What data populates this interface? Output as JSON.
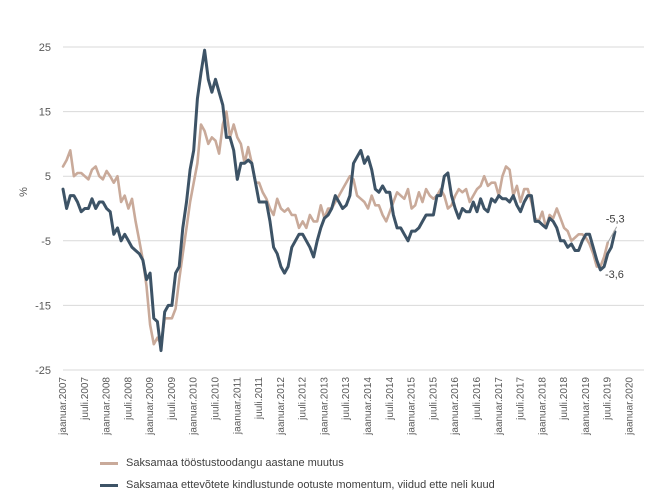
{
  "chart_data": {
    "type": "line",
    "title": "",
    "xlabel": "",
    "ylabel": "%",
    "ylim": [
      -25,
      25
    ],
    "yticks": [
      "25",
      "15",
      "5",
      "-5",
      "-15",
      "-25"
    ],
    "x_tick_labels": [
      "jaanuar.2007",
      "juuli.2007",
      "jaanuar.2008",
      "juuli.2008",
      "jaanuar.2009",
      "juuli.2009",
      "jaanuar.2010",
      "juuli.2010",
      "jaanuar.2011",
      "juuli.2011",
      "jaanuar.2012",
      "juuli.2012",
      "jaanuar.2013",
      "juuli.2013",
      "jaanuar.2014",
      "juuli.2014",
      "jaanuar.2015",
      "juuli.2015",
      "jaanuar.2016",
      "juuli.2016",
      "jaanuar.2017",
      "juuli.2017",
      "jaanuar.2018",
      "juuli.2018",
      "jaanuar.2019",
      "juuli.2019",
      "jaanuar.2020"
    ],
    "grid": "horizontal",
    "legend_position": "bottom",
    "series": [
      {
        "name": "Saksamaa tööstustoodangu aastane muutus",
        "color": "#c9aa9a",
        "points": [
          [
            0,
            6.5
          ],
          [
            1,
            7.5
          ],
          [
            2,
            9
          ],
          [
            3,
            5
          ],
          [
            4,
            5.5
          ],
          [
            5,
            5.5
          ],
          [
            6,
            5
          ],
          [
            7,
            4.5
          ],
          [
            8,
            6
          ],
          [
            9,
            6.5
          ],
          [
            10,
            5
          ],
          [
            11,
            4.5
          ],
          [
            12,
            5.8
          ],
          [
            13,
            5
          ],
          [
            14,
            4
          ],
          [
            15,
            5
          ],
          [
            16,
            1
          ],
          [
            17,
            2
          ],
          [
            18,
            0
          ],
          [
            19,
            1.5
          ],
          [
            20,
            -2
          ],
          [
            21,
            -5
          ],
          [
            22,
            -8
          ],
          [
            23,
            -12
          ],
          [
            24,
            -18
          ],
          [
            25,
            -21
          ],
          [
            26,
            -20
          ],
          [
            27,
            -21
          ],
          [
            28,
            -17
          ],
          [
            29,
            -17
          ],
          [
            30,
            -17
          ],
          [
            31,
            -15.5
          ],
          [
            32,
            -11
          ],
          [
            33,
            -7
          ],
          [
            34,
            -3
          ],
          [
            35,
            1
          ],
          [
            36,
            4
          ],
          [
            37,
            7
          ],
          [
            38,
            13
          ],
          [
            39,
            12
          ],
          [
            40,
            10
          ],
          [
            41,
            11
          ],
          [
            42,
            10.5
          ],
          [
            43,
            8.5
          ],
          [
            44,
            13
          ],
          [
            45,
            15
          ],
          [
            46,
            11
          ],
          [
            47,
            13
          ],
          [
            48,
            11
          ],
          [
            49,
            10
          ],
          [
            50,
            7
          ],
          [
            51,
            9.5
          ],
          [
            52,
            7
          ],
          [
            53,
            4
          ],
          [
            54,
            4
          ],
          [
            55,
            2.5
          ],
          [
            56,
            1.5
          ],
          [
            57,
            0
          ],
          [
            58,
            -1
          ],
          [
            59,
            1.5
          ],
          [
            60,
            0
          ],
          [
            61,
            -0.5
          ],
          [
            62,
            0
          ],
          [
            63,
            -1
          ],
          [
            64,
            -1
          ],
          [
            65,
            -3
          ],
          [
            66,
            -2
          ],
          [
            67,
            -3
          ],
          [
            68,
            -1
          ],
          [
            69,
            -2
          ],
          [
            70,
            -2
          ],
          [
            71,
            0.5
          ],
          [
            72,
            -1.5
          ],
          [
            73,
            0
          ],
          [
            74,
            0
          ],
          [
            75,
            1
          ],
          [
            76,
            2
          ],
          [
            77,
            3
          ],
          [
            78,
            4
          ],
          [
            79,
            5
          ],
          [
            80,
            4.5
          ],
          [
            81,
            2
          ],
          [
            82,
            1.5
          ],
          [
            83,
            1
          ],
          [
            84,
            0
          ],
          [
            85,
            2
          ],
          [
            86,
            0.5
          ],
          [
            87,
            0.5
          ],
          [
            88,
            -1
          ],
          [
            89,
            -2
          ],
          [
            90,
            -0.5
          ],
          [
            91,
            1
          ],
          [
            92,
            2.5
          ],
          [
            93,
            2
          ],
          [
            94,
            1.5
          ],
          [
            95,
            3
          ],
          [
            96,
            0
          ],
          [
            97,
            0.5
          ],
          [
            98,
            2.5
          ],
          [
            99,
            1
          ],
          [
            100,
            3
          ],
          [
            101,
            2
          ],
          [
            102,
            1.5
          ],
          [
            103,
            2
          ],
          [
            104,
            3
          ],
          [
            105,
            2
          ],
          [
            106,
            0
          ],
          [
            107,
            0.5
          ],
          [
            108,
            2
          ],
          [
            109,
            3
          ],
          [
            110,
            2.5
          ],
          [
            111,
            3
          ],
          [
            112,
            1
          ],
          [
            113,
            2
          ],
          [
            114,
            3
          ],
          [
            115,
            3.5
          ],
          [
            116,
            5
          ],
          [
            117,
            3.5
          ],
          [
            118,
            4
          ],
          [
            119,
            4
          ],
          [
            120,
            2
          ],
          [
            121,
            5
          ],
          [
            122,
            6.5
          ],
          [
            123,
            6
          ],
          [
            124,
            2
          ],
          [
            125,
            3.5
          ],
          [
            126,
            1
          ],
          [
            127,
            3
          ],
          [
            128,
            3
          ],
          [
            129,
            1
          ],
          [
            130,
            -1.5
          ],
          [
            131,
            -2
          ],
          [
            132,
            -0.5
          ],
          [
            133,
            -3
          ],
          [
            134,
            -1
          ],
          [
            135,
            -1.5
          ],
          [
            136,
            0
          ],
          [
            137,
            -1.5
          ],
          [
            138,
            -3
          ],
          [
            139,
            -3.5
          ],
          [
            140,
            -5
          ],
          [
            141,
            -4.5
          ],
          [
            142,
            -4
          ],
          [
            143,
            -4
          ],
          [
            144,
            -4.5
          ],
          [
            145,
            -5.5
          ],
          [
            146,
            -7
          ],
          [
            147,
            -9
          ],
          [
            148,
            -9
          ],
          [
            149,
            -7.5
          ],
          [
            150,
            -5.3
          ]
        ],
        "end_label": "-5,3"
      },
      {
        "name": "Saksamaa ettevõtete kindlustunde ootuste momentum, viidud ette neli kuud",
        "color": "#3d5366",
        "points": [
          [
            0,
            3
          ],
          [
            1,
            0
          ],
          [
            2,
            2
          ],
          [
            3,
            2
          ],
          [
            4,
            1
          ],
          [
            5,
            -0.5
          ],
          [
            6,
            0
          ],
          [
            7,
            0
          ],
          [
            8,
            1.5
          ],
          [
            9,
            0
          ],
          [
            10,
            1
          ],
          [
            11,
            1
          ],
          [
            12,
            0
          ],
          [
            13,
            -0.5
          ],
          [
            14,
            -4
          ],
          [
            15,
            -3
          ],
          [
            16,
            -5
          ],
          [
            17,
            -4
          ],
          [
            18,
            -5
          ],
          [
            19,
            -6
          ],
          [
            20,
            -6.5
          ],
          [
            21,
            -7
          ],
          [
            22,
            -8
          ],
          [
            23,
            -11
          ],
          [
            24,
            -10
          ],
          [
            25,
            -17
          ],
          [
            26,
            -17.5
          ],
          [
            27,
            -22
          ],
          [
            28,
            -16
          ],
          [
            29,
            -15
          ],
          [
            30,
            -15
          ],
          [
            31,
            -10
          ],
          [
            32,
            -9
          ],
          [
            33,
            -3
          ],
          [
            34,
            1
          ],
          [
            35,
            6
          ],
          [
            36,
            9
          ],
          [
            37,
            17
          ],
          [
            38,
            21
          ],
          [
            39,
            24.5
          ],
          [
            40,
            20
          ],
          [
            41,
            18
          ],
          [
            42,
            20
          ],
          [
            43,
            18
          ],
          [
            44,
            16
          ],
          [
            45,
            11
          ],
          [
            46,
            11
          ],
          [
            47,
            9
          ],
          [
            48,
            4.5
          ],
          [
            49,
            7
          ],
          [
            50,
            7
          ],
          [
            51,
            7.5
          ],
          [
            52,
            7
          ],
          [
            53,
            4
          ],
          [
            54,
            1
          ],
          [
            55,
            1
          ],
          [
            56,
            1
          ],
          [
            57,
            -2
          ],
          [
            58,
            -6
          ],
          [
            59,
            -7
          ],
          [
            60,
            -9
          ],
          [
            61,
            -10
          ],
          [
            62,
            -9
          ],
          [
            63,
            -6
          ],
          [
            64,
            -5
          ],
          [
            65,
            -4
          ],
          [
            66,
            -4
          ],
          [
            67,
            -5
          ],
          [
            68,
            -6
          ],
          [
            69,
            -7.5
          ],
          [
            70,
            -5
          ],
          [
            71,
            -3
          ],
          [
            72,
            -1.5
          ],
          [
            73,
            -1
          ],
          [
            74,
            0
          ],
          [
            75,
            2
          ],
          [
            76,
            1
          ],
          [
            77,
            0
          ],
          [
            78,
            0.5
          ],
          [
            79,
            2
          ],
          [
            80,
            7
          ],
          [
            81,
            8
          ],
          [
            82,
            9
          ],
          [
            83,
            7
          ],
          [
            84,
            8
          ],
          [
            85,
            6
          ],
          [
            86,
            3
          ],
          [
            87,
            2.5
          ],
          [
            88,
            3.5
          ],
          [
            89,
            2.5
          ],
          [
            90,
            2.5
          ],
          [
            91,
            -1
          ],
          [
            92,
            -3
          ],
          [
            93,
            -3
          ],
          [
            94,
            -4
          ],
          [
            95,
            -5
          ],
          [
            96,
            -3.5
          ],
          [
            97,
            -3.5
          ],
          [
            98,
            -3
          ],
          [
            99,
            -2
          ],
          [
            100,
            -1
          ],
          [
            101,
            -1
          ],
          [
            102,
            -1
          ],
          [
            103,
            2
          ],
          [
            104,
            2
          ],
          [
            105,
            5
          ],
          [
            106,
            5.5
          ],
          [
            107,
            2
          ],
          [
            108,
            0
          ],
          [
            109,
            -1.5
          ],
          [
            110,
            0
          ],
          [
            111,
            -0.5
          ],
          [
            112,
            -0.5
          ],
          [
            113,
            1
          ],
          [
            114,
            -0.5
          ],
          [
            115,
            1.5
          ],
          [
            116,
            0
          ],
          [
            117,
            -0.5
          ],
          [
            118,
            1.5
          ],
          [
            119,
            1
          ],
          [
            120,
            2
          ],
          [
            121,
            1.5
          ],
          [
            122,
            1.5
          ],
          [
            123,
            1
          ],
          [
            124,
            2
          ],
          [
            125,
            0.5
          ],
          [
            126,
            -0.5
          ],
          [
            127,
            1
          ],
          [
            128,
            2
          ],
          [
            129,
            2
          ],
          [
            130,
            -2
          ],
          [
            131,
            -2
          ],
          [
            132,
            -2.5
          ],
          [
            133,
            -3
          ],
          [
            134,
            -1.5
          ],
          [
            135,
            -2
          ],
          [
            136,
            -3
          ],
          [
            137,
            -5
          ],
          [
            138,
            -5
          ],
          [
            139,
            -6
          ],
          [
            140,
            -5.5
          ],
          [
            141,
            -6.5
          ],
          [
            142,
            -6.5
          ],
          [
            143,
            -5
          ],
          [
            144,
            -4
          ],
          [
            145,
            -4
          ],
          [
            146,
            -6
          ],
          [
            147,
            -8
          ],
          [
            148,
            -9.5
          ],
          [
            149,
            -9
          ],
          [
            150,
            -7
          ],
          [
            151,
            -6
          ],
          [
            152,
            -3.6
          ]
        ],
        "end_label": "-3,6"
      }
    ]
  }
}
